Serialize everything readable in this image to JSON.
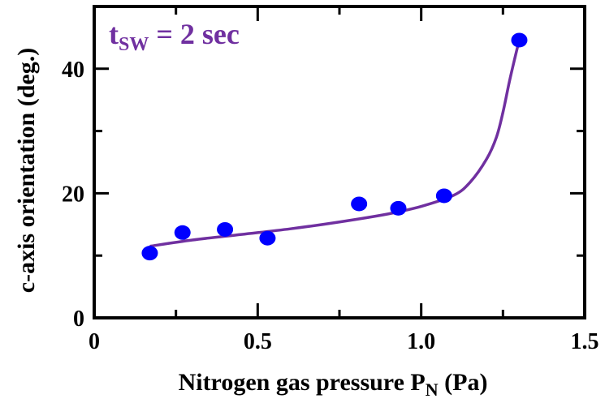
{
  "chart_data": {
    "type": "scatter",
    "xlabel": {
      "main": "Nitrogen gas pressure P",
      "sub": "N",
      "unit": " (Pa)"
    },
    "ylabel": "c-axis orientation (deg.)",
    "xlim": [
      0,
      1.5
    ],
    "ylim": [
      0,
      50
    ],
    "x_ticks": [
      0,
      0.5,
      1.0,
      1.5
    ],
    "x_tick_labels": [
      "0",
      "0.5",
      "1.0",
      "1.5"
    ],
    "x_minor_ticks": [
      0.25,
      0.75,
      1.25
    ],
    "y_ticks": [
      0,
      20,
      40
    ],
    "y_tick_labels": [
      "0",
      "20",
      "40"
    ],
    "y_minor_ticks": [
      10,
      30,
      50
    ],
    "grid": false,
    "annotation": {
      "t": "t",
      "sub": "SW",
      "rest": " = 2 sec",
      "color": "#7030A0"
    },
    "series": [
      {
        "kind": "points",
        "color": "#0000FF",
        "x": [
          0.17,
          0.27,
          0.4,
          0.53,
          0.81,
          0.93,
          1.07,
          1.3
        ],
        "y": [
          10.4,
          13.7,
          14.2,
          12.8,
          18.3,
          17.6,
          19.6,
          44.6
        ]
      },
      {
        "kind": "fit-curve",
        "color": "#7030A0",
        "x": [
          0.17,
          0.3,
          0.45,
          0.6,
          0.75,
          0.9,
          1.0,
          1.1,
          1.15,
          1.2,
          1.23,
          1.25,
          1.27,
          1.29,
          1.3
        ],
        "y": [
          11.5,
          12.5,
          13.4,
          14.3,
          15.4,
          16.7,
          17.9,
          19.7,
          21.8,
          25.5,
          29.0,
          33.0,
          38.0,
          42.5,
          44.6
        ]
      }
    ]
  }
}
